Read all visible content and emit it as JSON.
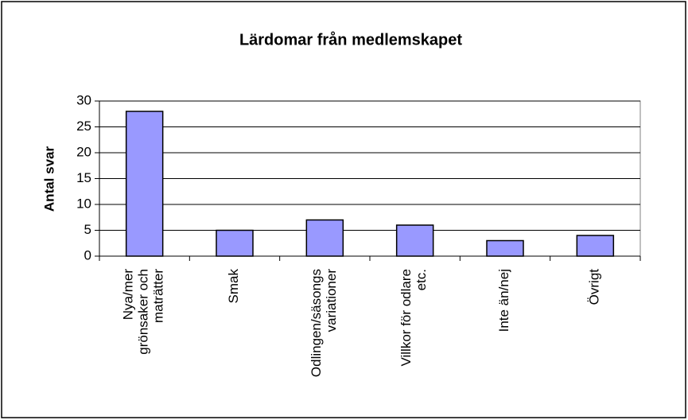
{
  "chart_data": {
    "type": "bar",
    "title": "Lärdomar från medlemskapet",
    "y_label": "Antal svar",
    "categories": [
      "Nya/mer\ngrönsaker och\nmaträtter",
      "Smak",
      "Odlingen/säsongs\nvariationer",
      "Villkor för odlare\netc.",
      "Inte än/nej",
      "Övrigt"
    ],
    "values": [
      28,
      5,
      7,
      6,
      3,
      4
    ],
    "color": "#9999ff",
    "ylim": [
      0,
      30
    ],
    "yticks": [
      0,
      5,
      10,
      15,
      20,
      25,
      30
    ],
    "grid": true
  }
}
